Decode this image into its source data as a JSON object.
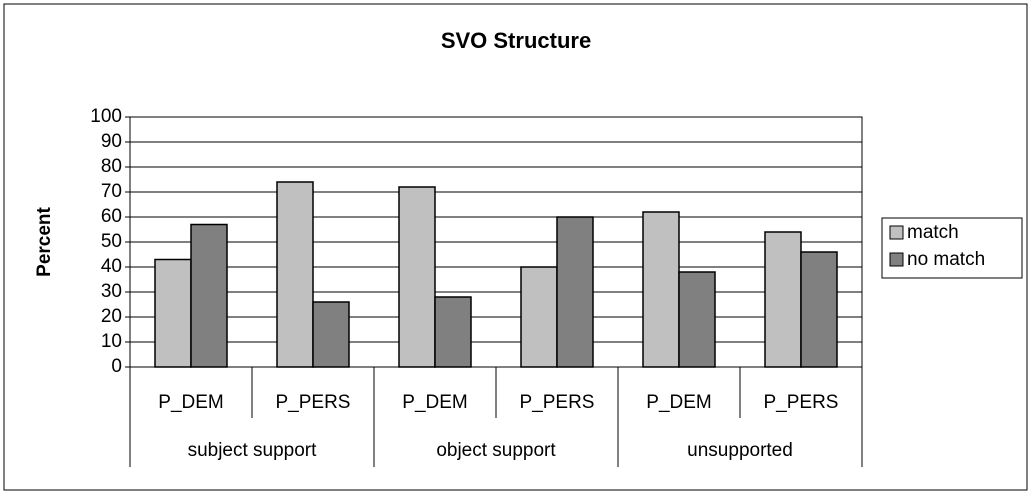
{
  "chart_data": {
    "type": "bar",
    "title": "SVO Structure",
    "y_label": "Percent",
    "categories": [
      "P_DEM",
      "P_PERS",
      "P_DEM",
      "P_PERS",
      "P_DEM",
      "P_PERS"
    ],
    "groups": [
      "subject support",
      "object support",
      "unsupported"
    ],
    "series": [
      {
        "name": "match",
        "color": "#c0c0c0",
        "values": [
          43,
          74,
          72,
          40,
          62,
          54
        ]
      },
      {
        "name": "no match",
        "color": "#808080",
        "values": [
          57,
          26,
          28,
          60,
          38,
          46
        ]
      }
    ],
    "ylim": [
      0,
      100
    ],
    "yticks": [
      0,
      10,
      20,
      30,
      40,
      50,
      60,
      70,
      80,
      90,
      100
    ],
    "grid": true,
    "legend": "right"
  }
}
